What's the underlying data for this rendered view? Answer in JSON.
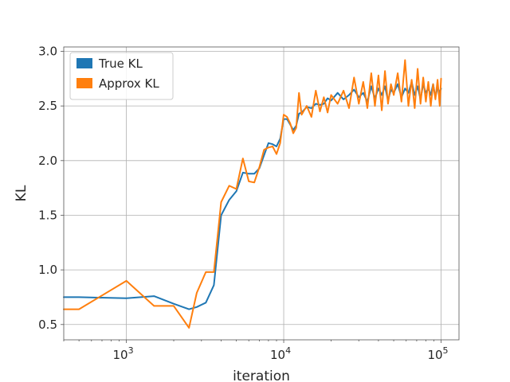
{
  "chart_data": {
    "type": "line",
    "xlabel": "iteration",
    "ylabel": "KL",
    "xscale": "log",
    "xlim": [
      400,
      130000
    ],
    "ylim": [
      0.36,
      3.04
    ],
    "grid": true,
    "legend_position": "top-left",
    "x_ticks": [
      {
        "value": 1000,
        "mantissa": "10",
        "exp": "3"
      },
      {
        "value": 10000,
        "mantissa": "10",
        "exp": "4"
      },
      {
        "value": 100000,
        "mantissa": "10",
        "exp": "5"
      }
    ],
    "y_ticks": [
      {
        "value": 0.5,
        "label": "0.5"
      },
      {
        "value": 1.0,
        "label": "1.0"
      },
      {
        "value": 1.5,
        "label": "1.5"
      },
      {
        "value": 2.0,
        "label": "2.0"
      },
      {
        "value": 2.5,
        "label": "2.5"
      },
      {
        "value": 3.0,
        "label": "3.0"
      }
    ],
    "series": [
      {
        "name": "True KL",
        "color": "#1f77b4",
        "x": [
          400,
          500,
          1000,
          1500,
          2000,
          2500,
          2800,
          3200,
          3600,
          4000,
          4500,
          5000,
          5500,
          6000,
          6500,
          7000,
          7500,
          8000,
          8500,
          9000,
          9500,
          10000,
          10500,
          11000,
          11500,
          12000,
          12500,
          13000,
          14000,
          15000,
          16000,
          17000,
          18000,
          19000,
          20000,
          22000,
          24000,
          26000,
          28000,
          30000,
          32000,
          34000,
          36000,
          38000,
          40000,
          42000,
          44000,
          46000,
          48000,
          50000,
          53000,
          56000,
          59000,
          62000,
          65000,
          68000,
          71000,
          74000,
          77000,
          80000,
          83000,
          86000,
          89000,
          92000,
          95000,
          98000,
          100000
        ],
        "y": [
          0.75,
          0.75,
          0.74,
          0.76,
          0.69,
          0.64,
          0.66,
          0.7,
          0.86,
          1.5,
          1.64,
          1.72,
          1.89,
          1.88,
          1.88,
          1.93,
          2.05,
          2.16,
          2.15,
          2.13,
          2.2,
          2.38,
          2.38,
          2.33,
          2.28,
          2.32,
          2.43,
          2.44,
          2.49,
          2.48,
          2.52,
          2.51,
          2.52,
          2.57,
          2.55,
          2.62,
          2.56,
          2.6,
          2.65,
          2.58,
          2.62,
          2.54,
          2.68,
          2.57,
          2.66,
          2.6,
          2.68,
          2.55,
          2.65,
          2.62,
          2.7,
          2.58,
          2.66,
          2.62,
          2.72,
          2.6,
          2.68,
          2.56,
          2.7,
          2.62,
          2.66,
          2.6,
          2.7,
          2.58,
          2.67,
          2.62,
          2.66
        ]
      },
      {
        "name": "Approx KL",
        "color": "#ff7f0e",
        "x": [
          400,
          500,
          1000,
          1500,
          2000,
          2500,
          2800,
          3200,
          3600,
          4000,
          4500,
          5000,
          5500,
          6000,
          6500,
          7000,
          7500,
          8000,
          8500,
          9000,
          9500,
          10000,
          10500,
          11000,
          11500,
          12000,
          12500,
          13000,
          14000,
          15000,
          16000,
          17000,
          18000,
          19000,
          20000,
          22000,
          24000,
          26000,
          28000,
          30000,
          32000,
          34000,
          36000,
          38000,
          40000,
          42000,
          44000,
          46000,
          48000,
          50000,
          53000,
          56000,
          59000,
          62000,
          65000,
          68000,
          71000,
          74000,
          77000,
          80000,
          83000,
          86000,
          89000,
          92000,
          95000,
          98000,
          100000
        ],
        "y": [
          0.64,
          0.64,
          0.9,
          0.67,
          0.67,
          0.47,
          0.79,
          0.98,
          0.98,
          1.62,
          1.77,
          1.74,
          2.02,
          1.81,
          1.8,
          1.94,
          2.1,
          2.12,
          2.13,
          2.06,
          2.16,
          2.42,
          2.4,
          2.34,
          2.25,
          2.3,
          2.62,
          2.42,
          2.5,
          2.4,
          2.64,
          2.45,
          2.58,
          2.44,
          2.6,
          2.52,
          2.64,
          2.48,
          2.76,
          2.52,
          2.72,
          2.48,
          2.8,
          2.5,
          2.78,
          2.46,
          2.82,
          2.52,
          2.7,
          2.6,
          2.8,
          2.54,
          2.92,
          2.5,
          2.74,
          2.48,
          2.84,
          2.52,
          2.76,
          2.54,
          2.72,
          2.5,
          2.7,
          2.56,
          2.74,
          2.5,
          2.75
        ]
      }
    ]
  }
}
